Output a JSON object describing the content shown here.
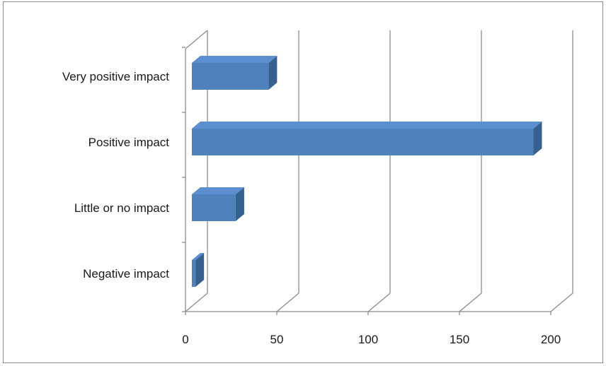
{
  "chart_data": {
    "type": "bar",
    "orientation": "horizontal",
    "style": "3d",
    "title": "",
    "xlabel": "",
    "ylabel": "",
    "categories": [
      "Very positive impact",
      "Positive impact",
      "Little or no impact",
      "Negative impact"
    ],
    "values": [
      42,
      187,
      24,
      2
    ],
    "xlim": [
      0,
      200
    ],
    "x_ticks": [
      "0",
      "50",
      "100",
      "150",
      "200"
    ],
    "grid": true,
    "legend": "none",
    "colors": {
      "bar_front": "#4f81bd",
      "bar_top": "#5b8fd0",
      "bar_side": "#35608f",
      "grid": "#8c8c8c"
    }
  }
}
